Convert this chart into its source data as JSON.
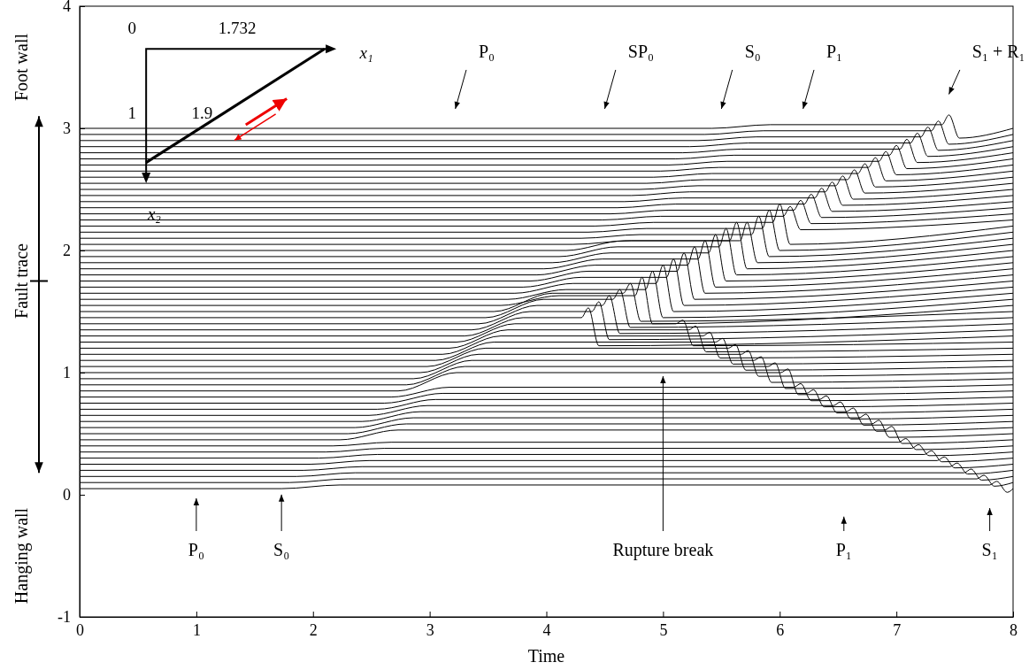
{
  "chart_data": {
    "type": "line",
    "xlabel": "Time",
    "xlim": [
      0,
      8
    ],
    "xticks": [
      0,
      1,
      2,
      3,
      4,
      5,
      6,
      7,
      8
    ],
    "ylim": [
      -1,
      4
    ],
    "yticks": [
      -1,
      0,
      1,
      2,
      3,
      4
    ],
    "grid": false,
    "annotations": [
      "P₀",
      "SP₀",
      "S₀",
      "P₁",
      "S₁ + R₁",
      "P₀",
      "S₀",
      {
        "text": "Rupture break",
        "x": 5.0,
        "y": 1.0
      },
      "P₁",
      "S₁",
      "Foot wall",
      "Fault trace",
      "Hanging wall",
      "0",
      "1.732",
      "x₁",
      "1",
      "1.9",
      "x₂"
    ],
    "series": [
      {
        "color": "#000000",
        "x": [
          0,
          1.73,
          2.23,
          7.8,
          7.86,
          7.95,
          8
        ],
        "values": [
          0.05,
          0.05,
          0.08,
          0.08,
          0.11,
          0.02,
          0.05
        ]
      },
      {
        "color": "#000000",
        "x": [
          0,
          1.8,
          2.3,
          7.69,
          7.75,
          7.84,
          8
        ],
        "values": [
          0.1,
          0.1,
          0.13,
          0.13,
          0.16,
          0.07,
          0.1
        ]
      },
      {
        "color": "#000000",
        "x": [
          0,
          1.86,
          2.36,
          7.58,
          7.64,
          7.73,
          8
        ],
        "values": [
          0.15,
          0.15,
          0.18,
          0.18,
          0.21,
          0.12,
          0.15
        ]
      },
      {
        "color": "#000000",
        "x": [
          0,
          1.92,
          2.42,
          7.46,
          7.52,
          7.61,
          8
        ],
        "values": [
          0.2,
          0.2,
          0.23,
          0.23,
          0.26,
          0.17,
          0.2
        ]
      },
      {
        "color": "#000000",
        "x": [
          0,
          1.98,
          2.48,
          7.35,
          7.41,
          7.5,
          8
        ],
        "values": [
          0.25,
          0.25,
          0.28,
          0.28,
          0.31,
          0.22,
          0.25
        ]
      },
      {
        "color": "#000000",
        "x": [
          0,
          2.05,
          2.55,
          7.24,
          7.3,
          7.39,
          8
        ],
        "values": [
          0.3,
          0.3,
          0.33,
          0.33,
          0.36,
          0.27,
          0.3
        ]
      },
      {
        "color": "#000000",
        "x": [
          0,
          2.11,
          2.61,
          7.13,
          7.19,
          7.28,
          8
        ],
        "values": [
          0.35,
          0.35,
          0.38,
          0.38,
          0.41,
          0.32,
          0.35
        ]
      },
      {
        "color": "#000000",
        "x": [
          0,
          2.17,
          2.67,
          7.02,
          7.08,
          7.17,
          8
        ],
        "values": [
          0.4,
          0.4,
          0.43,
          0.43,
          0.46,
          0.37,
          0.4
        ]
      },
      {
        "color": "#000000",
        "x": [
          0,
          2.23,
          2.73,
          6.9,
          6.96,
          7.05,
          8
        ],
        "values": [
          0.45,
          0.45,
          0.53,
          0.53,
          0.56,
          0.42,
          0.45
        ]
      },
      {
        "color": "#000000",
        "x": [
          0,
          2.3,
          2.8,
          6.79,
          6.85,
          6.94,
          8
        ],
        "values": [
          0.5,
          0.5,
          0.58,
          0.58,
          0.61,
          0.47,
          0.5
        ]
      },
      {
        "color": "#000000",
        "x": [
          0,
          2.36,
          2.86,
          6.68,
          6.74,
          6.83,
          8
        ],
        "values": [
          0.55,
          0.55,
          0.63,
          0.63,
          0.66,
          0.52,
          0.55
        ]
      },
      {
        "color": "#000000",
        "x": [
          0,
          2.42,
          2.92,
          6.57,
          6.63,
          6.72,
          8
        ],
        "values": [
          0.6,
          0.6,
          0.68,
          0.68,
          0.71,
          0.57,
          0.6
        ]
      },
      {
        "color": "#000000",
        "x": [
          0,
          2.48,
          2.98,
          6.46,
          6.52,
          6.61,
          8
        ],
        "values": [
          0.65,
          0.65,
          0.73,
          0.73,
          0.76,
          0.62,
          0.65
        ]
      },
      {
        "color": "#000000",
        "x": [
          0,
          2.55,
          3.05,
          6.34,
          6.4,
          6.49,
          8
        ],
        "values": [
          0.7,
          0.7,
          0.78,
          0.78,
          0.81,
          0.67,
          0.7
        ]
      },
      {
        "color": "#000000",
        "x": [
          0,
          2.61,
          3.11,
          6.23,
          6.29,
          6.38,
          8
        ],
        "values": [
          0.75,
          0.75,
          0.83,
          0.83,
          0.86,
          0.72,
          0.75
        ]
      },
      {
        "color": "#000000",
        "x": [
          0,
          2.67,
          3.17,
          6.12,
          6.18,
          6.27,
          8
        ],
        "values": [
          0.8,
          0.8,
          0.88,
          0.88,
          0.91,
          0.77,
          0.8
        ]
      },
      {
        "color": "#000000",
        "x": [
          0,
          2.73,
          3.23,
          6.01,
          6.07,
          6.16,
          8
        ],
        "values": [
          0.85,
          0.85,
          1.0,
          1.0,
          1.03,
          0.82,
          0.85
        ]
      },
      {
        "color": "#000000",
        "x": [
          0,
          2.8,
          3.3,
          5.9,
          5.96,
          6.05,
          8
        ],
        "values": [
          0.9,
          0.9,
          1.05,
          1.05,
          1.08,
          0.87,
          0.9
        ]
      },
      {
        "color": "#000000",
        "x": [
          0,
          2.86,
          3.36,
          5.78,
          5.84,
          5.93,
          8
        ],
        "values": [
          0.95,
          0.95,
          1.1,
          1.1,
          1.13,
          0.92,
          0.95
        ]
      },
      {
        "color": "#000000",
        "x": [
          0,
          2.92,
          3.42,
          5.67,
          5.73,
          5.82,
          8
        ],
        "values": [
          1.0,
          1.0,
          1.15,
          1.15,
          1.18,
          0.97,
          1.0
        ]
      },
      {
        "color": "#000000",
        "x": [
          0,
          2.98,
          3.48,
          5.56,
          5.62,
          5.71,
          8
        ],
        "values": [
          1.05,
          1.05,
          1.2,
          1.2,
          1.23,
          1.02,
          1.05
        ]
      },
      {
        "color": "#000000",
        "x": [
          0,
          3.05,
          3.55,
          5.45,
          5.51,
          5.6,
          8
        ],
        "values": [
          1.1,
          1.1,
          1.25,
          1.25,
          1.28,
          1.07,
          1.1
        ]
      },
      {
        "color": "#000000",
        "x": [
          0,
          3.11,
          3.61,
          5.34,
          5.4,
          5.49,
          8
        ],
        "values": [
          1.15,
          1.15,
          1.3,
          1.3,
          1.33,
          1.12,
          1.15
        ]
      },
      {
        "color": "#000000",
        "x": [
          0,
          3.17,
          3.67,
          5.22,
          5.28,
          5.37,
          8
        ],
        "values": [
          1.2,
          1.2,
          1.35,
          1.35,
          1.38,
          1.17,
          1.2
        ]
      },
      {
        "color": "#000000",
        "x": [
          0,
          3.23,
          3.73,
          5.11,
          5.17,
          5.26,
          8
        ],
        "values": [
          1.25,
          1.25,
          1.4,
          1.4,
          1.43,
          1.22,
          1.25
        ]
      },
      {
        "color": "#000000",
        "x": [
          0,
          3.3,
          3.8,
          4.3,
          4.36,
          4.45,
          8
        ],
        "values": [
          1.3,
          1.3,
          1.45,
          1.45,
          1.53,
          1.22,
          1.3
        ]
      },
      {
        "color": "#000000",
        "x": [
          0,
          3.36,
          3.86,
          4.39,
          4.45,
          4.54,
          8
        ],
        "values": [
          1.35,
          1.35,
          1.5,
          1.5,
          1.58,
          1.27,
          1.35
        ]
      },
      {
        "color": "#000000",
        "x": [
          0,
          3.42,
          3.92,
          4.48,
          4.54,
          4.63,
          8
        ],
        "values": [
          1.4,
          1.4,
          1.55,
          1.55,
          1.63,
          1.32,
          1.4
        ]
      },
      {
        "color": "#000000",
        "x": [
          0,
          3.48,
          3.98,
          4.57,
          4.63,
          4.72,
          8
        ],
        "values": [
          1.45,
          1.45,
          1.6,
          1.6,
          1.68,
          1.37,
          1.45
        ]
      },
      {
        "color": "#000000",
        "x": [
          0,
          3.55,
          4.05,
          4.66,
          4.72,
          4.81,
          8
        ],
        "values": [
          1.5,
          1.5,
          1.65,
          1.65,
          1.73,
          1.42,
          1.5
        ]
      },
      {
        "color": "#000000",
        "x": [
          0,
          3.61,
          4.11,
          4.76,
          4.82,
          4.91,
          8
        ],
        "values": [
          1.55,
          1.55,
          1.63,
          1.63,
          1.78,
          1.4,
          1.55
        ]
      },
      {
        "color": "#000000",
        "x": [
          0,
          3.67,
          4.17,
          4.85,
          4.91,
          5.0,
          8
        ],
        "values": [
          1.6,
          1.6,
          1.68,
          1.68,
          1.83,
          1.45,
          1.6
        ]
      },
      {
        "color": "#000000",
        "x": [
          0,
          3.73,
          4.23,
          4.94,
          5.0,
          5.09,
          8
        ],
        "values": [
          1.65,
          1.65,
          1.73,
          1.73,
          1.88,
          1.5,
          1.65
        ]
      },
      {
        "color": "#000000",
        "x": [
          0,
          3.8,
          4.3,
          5.03,
          5.09,
          5.18,
          8
        ],
        "values": [
          1.7,
          1.7,
          1.78,
          1.78,
          1.93,
          1.55,
          1.7
        ]
      },
      {
        "color": "#000000",
        "x": [
          0,
          3.86,
          4.36,
          5.12,
          5.18,
          5.27,
          8
        ],
        "values": [
          1.75,
          1.75,
          1.83,
          1.83,
          1.98,
          1.6,
          1.75
        ]
      },
      {
        "color": "#000000",
        "x": [
          0,
          3.92,
          4.42,
          5.21,
          5.27,
          5.36,
          8
        ],
        "values": [
          1.8,
          1.8,
          1.88,
          1.88,
          2.03,
          1.65,
          1.8
        ]
      },
      {
        "color": "#000000",
        "x": [
          0,
          3.98,
          4.48,
          5.3,
          5.36,
          5.45,
          8
        ],
        "values": [
          1.85,
          1.85,
          1.93,
          1.93,
          2.08,
          1.7,
          1.85
        ]
      },
      {
        "color": "#000000",
        "x": [
          0,
          4.05,
          4.55,
          5.39,
          5.45,
          5.54,
          8
        ],
        "values": [
          1.9,
          1.9,
          1.98,
          1.98,
          2.13,
          1.75,
          1.9
        ]
      },
      {
        "color": "#000000",
        "x": [
          0,
          4.11,
          4.61,
          5.48,
          5.54,
          5.63,
          8
        ],
        "values": [
          1.95,
          1.95,
          2.03,
          2.03,
          2.18,
          1.8,
          1.95
        ]
      },
      {
        "color": "#000000",
        "x": [
          0,
          4.17,
          4.67,
          5.57,
          5.63,
          5.72,
          8
        ],
        "values": [
          2.0,
          2.0,
          2.08,
          2.08,
          2.23,
          1.85,
          2.0
        ]
      },
      {
        "color": "#000000",
        "x": [
          0,
          4.23,
          4.73,
          5.66,
          5.72,
          5.81,
          8
        ],
        "values": [
          2.05,
          2.05,
          2.08,
          2.08,
          2.23,
          1.9,
          2.05
        ]
      },
      {
        "color": "#000000",
        "x": [
          0,
          4.3,
          4.8,
          5.76,
          5.82,
          5.91,
          8
        ],
        "values": [
          2.1,
          2.1,
          2.13,
          2.13,
          2.28,
          1.95,
          2.1
        ]
      },
      {
        "color": "#000000",
        "x": [
          0,
          4.36,
          4.86,
          5.85,
          5.91,
          6.0,
          8
        ],
        "values": [
          2.15,
          2.15,
          2.18,
          2.18,
          2.33,
          2.0,
          2.15
        ]
      },
      {
        "color": "#000000",
        "x": [
          0,
          4.42,
          4.92,
          5.94,
          6.0,
          6.09,
          8
        ],
        "values": [
          2.2,
          2.2,
          2.23,
          2.23,
          2.38,
          2.05,
          2.2
        ]
      },
      {
        "color": "#000000",
        "x": [
          0,
          4.48,
          4.98,
          6.03,
          6.09,
          6.18,
          8
        ],
        "values": [
          2.25,
          2.25,
          2.28,
          2.28,
          2.36,
          2.17,
          2.25
        ]
      },
      {
        "color": "#000000",
        "x": [
          0,
          4.55,
          5.05,
          6.12,
          6.18,
          6.27,
          8
        ],
        "values": [
          2.3,
          2.3,
          2.33,
          2.33,
          2.41,
          2.22,
          2.3
        ]
      },
      {
        "color": "#000000",
        "x": [
          0,
          4.61,
          5.11,
          6.21,
          6.27,
          6.36,
          8
        ],
        "values": [
          2.35,
          2.35,
          2.38,
          2.38,
          2.46,
          2.27,
          2.35
        ]
      },
      {
        "color": "#000000",
        "x": [
          0,
          4.67,
          5.17,
          6.3,
          6.36,
          6.45,
          8
        ],
        "values": [
          2.4,
          2.4,
          2.43,
          2.43,
          2.51,
          2.32,
          2.4
        ]
      },
      {
        "color": "#000000",
        "x": [
          0,
          4.73,
          5.23,
          6.39,
          6.45,
          6.54,
          8
        ],
        "values": [
          2.45,
          2.45,
          2.48,
          2.48,
          2.56,
          2.37,
          2.45
        ]
      },
      {
        "color": "#000000",
        "x": [
          0,
          4.8,
          5.3,
          6.48,
          6.54,
          6.63,
          8
        ],
        "values": [
          2.5,
          2.5,
          2.53,
          2.53,
          2.61,
          2.42,
          2.5
        ]
      },
      {
        "color": "#000000",
        "x": [
          0,
          4.86,
          5.36,
          6.58,
          6.64,
          6.73,
          8
        ],
        "values": [
          2.55,
          2.55,
          2.58,
          2.58,
          2.66,
          2.47,
          2.55
        ]
      },
      {
        "color": "#000000",
        "x": [
          0,
          4.92,
          5.42,
          6.67,
          6.73,
          6.82,
          8
        ],
        "values": [
          2.6,
          2.6,
          2.63,
          2.63,
          2.71,
          2.52,
          2.6
        ]
      },
      {
        "color": "#000000",
        "x": [
          0,
          4.98,
          5.48,
          6.76,
          6.82,
          6.91,
          8
        ],
        "values": [
          2.65,
          2.65,
          2.68,
          2.68,
          2.76,
          2.57,
          2.65
        ]
      },
      {
        "color": "#000000",
        "x": [
          0,
          5.05,
          5.55,
          6.85,
          6.91,
          7.0,
          8
        ],
        "values": [
          2.7,
          2.7,
          2.73,
          2.73,
          2.81,
          2.62,
          2.7
        ]
      },
      {
        "color": "#000000",
        "x": [
          0,
          5.11,
          5.61,
          6.94,
          7.0,
          7.09,
          8
        ],
        "values": [
          2.75,
          2.75,
          2.78,
          2.78,
          2.86,
          2.67,
          2.75
        ]
      },
      {
        "color": "#000000",
        "x": [
          0,
          5.17,
          5.67,
          7.03,
          7.09,
          7.18,
          8
        ],
        "values": [
          2.8,
          2.8,
          2.83,
          2.83,
          2.91,
          2.72,
          2.8
        ]
      },
      {
        "color": "#000000",
        "x": [
          0,
          5.23,
          5.73,
          7.12,
          7.18,
          7.27,
          8
        ],
        "values": [
          2.85,
          2.85,
          2.88,
          2.88,
          2.96,
          2.77,
          2.85
        ]
      },
      {
        "color": "#000000",
        "x": [
          0,
          5.3,
          5.8,
          7.21,
          7.27,
          7.36,
          8
        ],
        "values": [
          2.9,
          2.9,
          2.93,
          2.93,
          3.01,
          2.82,
          2.9
        ]
      },
      {
        "color": "#000000",
        "x": [
          0,
          5.36,
          5.86,
          7.3,
          7.36,
          7.45,
          8
        ],
        "values": [
          2.95,
          2.95,
          2.98,
          2.98,
          3.06,
          2.87,
          2.95
        ]
      },
      {
        "color": "#000000",
        "x": [
          0,
          5.42,
          5.92,
          7.39,
          7.45,
          7.54,
          8
        ],
        "values": [
          3.0,
          3.0,
          3.03,
          3.03,
          3.11,
          2.92,
          3.0
        ]
      }
    ]
  }
}
